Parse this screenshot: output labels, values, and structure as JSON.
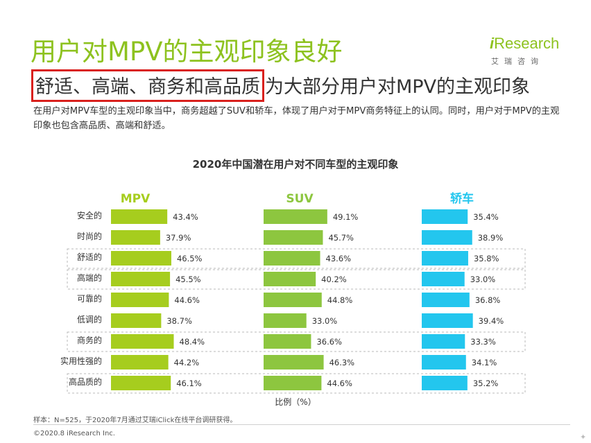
{
  "header": {
    "title": "用户对MPV的主观印象良好",
    "logo_i": "i",
    "logo_rest": "Research",
    "logo_sub": "艾瑞咨询",
    "subtitle_highlight": "舒适、高端、商务和高品质",
    "subtitle_rest": "为大部分用户对MPV的主观印象",
    "description": "在用户对MPV车型的主观印象当中，商务超越了SUV和轿车，体现了用户对于MPV商务特征上的认同。同时，用户对于MPV的主观印象也包含高品质、高端和舒适。"
  },
  "chart_data": {
    "type": "bar",
    "orientation": "horizontal",
    "title": "2020年中国潜在用户对不同车型的主观印象",
    "xlabel": "比例（%）",
    "categories": [
      "安全的",
      "时尚的",
      "舒适的",
      "高端的",
      "可靠的",
      "低调的",
      "商务的",
      "实用性强的",
      "高品质的"
    ],
    "highlighted_categories": [
      "舒适的",
      "高端的",
      "商务的",
      "高品质的"
    ],
    "series": [
      {
        "name": "MPV",
        "color": "#a6cd1e",
        "values": [
          43.4,
          37.9,
          46.5,
          45.5,
          44.6,
          38.7,
          48.4,
          44.2,
          46.1
        ],
        "labels": [
          "43.4%",
          "37.9%",
          "46.5%",
          "45.5%",
          "44.6%",
          "38.7%",
          "48.4%",
          "44.2%",
          "46.1%"
        ]
      },
      {
        "name": "SUV",
        "color": "#8dc63f",
        "values": [
          49.1,
          45.7,
          43.6,
          40.2,
          44.8,
          33.0,
          36.6,
          46.3,
          44.6
        ],
        "labels": [
          "49.1%",
          "45.7%",
          "43.6%",
          "40.2%",
          "44.8%",
          "33.0%",
          "36.6%",
          "46.3%",
          "44.6%"
        ]
      },
      {
        "name": "轿车",
        "color": "#23c6ee",
        "values": [
          35.4,
          38.9,
          35.8,
          33.0,
          36.8,
          39.4,
          33.3,
          34.1,
          35.2
        ],
        "labels": [
          "35.4%",
          "38.9%",
          "35.8%",
          "33.0%",
          "36.8%",
          "39.4%",
          "33.3%",
          "34.1%",
          "35.2%"
        ]
      }
    ],
    "grid": false,
    "legend": "none"
  },
  "footer": {
    "note": "样本：N=525，于2020年7月通过艾瑞iClick在线平台调研获得。",
    "copyright": "©2020.8 iResearch Inc."
  }
}
